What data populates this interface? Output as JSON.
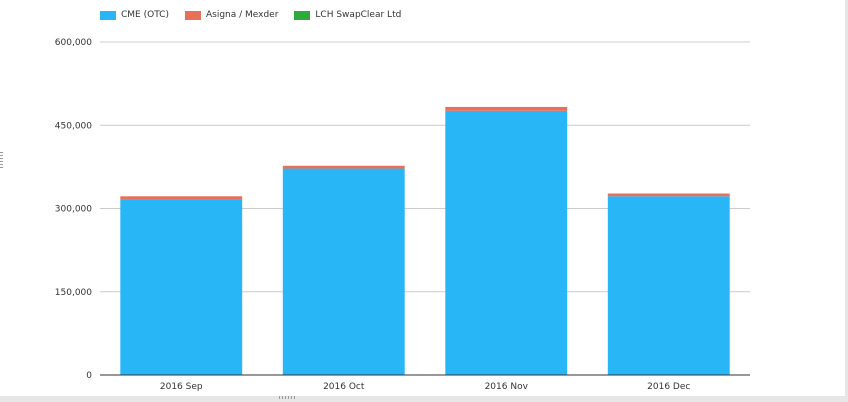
{
  "chart_data": {
    "type": "bar",
    "stacked": true,
    "title": "",
    "xlabel": "",
    "ylabel": "",
    "categories": [
      "2016 Sep",
      "2016 Oct",
      "2016 Nov",
      "2016 Dec"
    ],
    "series": [
      {
        "name": "CME (OTC)",
        "color": "#29b6f6",
        "values": [
          316000,
          372000,
          476000,
          322000
        ]
      },
      {
        "name": "Asigna / Mexder",
        "color": "#e8705a",
        "values": [
          6000,
          5000,
          7000,
          5000
        ]
      },
      {
        "name": "LCH SwapClear Ltd",
        "color": "#2eaa3c",
        "values": [
          0,
          0,
          0,
          0
        ]
      }
    ],
    "ylim": [
      0,
      600000
    ],
    "yticks": [
      0,
      150000,
      300000,
      450000,
      600000
    ],
    "ytick_labels": [
      "0",
      "150,000",
      "300,000",
      "450,000",
      "600,000"
    ],
    "grid": true,
    "legend_position": "top-left"
  }
}
